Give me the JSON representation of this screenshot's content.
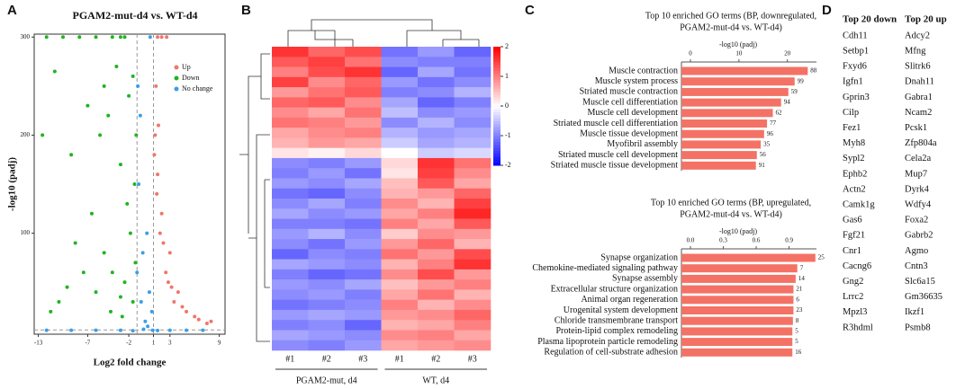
{
  "panels": [
    "A",
    "B",
    "C",
    "D"
  ],
  "chart_data": [
    {
      "type": "scatter",
      "title": "PGAM2-mut-d4  vs. WT-d4",
      "xlabel": "Log2 fold change",
      "ylabel": "-log10 (padj)",
      "xlim": [
        -13.5,
        9.7
      ],
      "ylim": [
        -3,
        303
      ],
      "xticks": [
        -13,
        -7,
        -2,
        1,
        3,
        9
      ],
      "yticks": [
        100,
        200,
        300
      ],
      "vlines": [
        -1,
        1
      ],
      "hlines": [
        1.3
      ],
      "legend": "upper right",
      "series": [
        {
          "name": "Up",
          "color": "#f0766b",
          "x": [
            1.5,
            2,
            2.6,
            1.2,
            1.5,
            2,
            3,
            4,
            5,
            6,
            8,
            2.5,
            1.8,
            3.5,
            1.3,
            1.1,
            1.4,
            2.2,
            4.5,
            6.5,
            7.5,
            1.6,
            2.8,
            3.2
          ],
          "values": [
            300,
            300,
            300,
            200,
            160,
            120,
            80,
            40,
            20,
            15,
            10,
            60,
            100,
            30,
            250,
            180,
            140,
            90,
            25,
            12,
            8,
            210,
            50,
            45
          ]
        },
        {
          "name": "Down",
          "color": "#1fb51f",
          "x": [
            -12,
            -10,
            -8,
            -6,
            -4,
            -3,
            -2.5,
            -12.5,
            -11,
            -9,
            -7,
            -5,
            -4.5,
            -3.5,
            -2,
            -1.5,
            -1.3,
            -6.5,
            -8.5,
            -5.5,
            -3,
            -2.2,
            -1.8,
            -4,
            -7.5,
            -9.5,
            -10.5,
            -11.5,
            -6,
            -5,
            -3,
            -2.5,
            -1.5,
            -1.2,
            -2.8,
            -4.2,
            -1.1
          ],
          "values": [
            300,
            300,
            300,
            300,
            300,
            300,
            300,
            200,
            265,
            180,
            230,
            250,
            220,
            270,
            240,
            260,
            150,
            120,
            90,
            200,
            170,
            130,
            100,
            60,
            60,
            45,
            30,
            20,
            40,
            80,
            35,
            50,
            30,
            70,
            15,
            20,
            200
          ]
        },
        {
          "name": "No change",
          "color": "#3a9ee8",
          "x": [
            -1,
            -0.5,
            0,
            0.5,
            0.8,
            -0.8,
            0.3,
            -0.2,
            0.9,
            -3,
            -6,
            -9,
            5,
            3,
            -0.6,
            0.6,
            -0.9,
            0.2,
            -12,
            -1.5,
            1.5,
            7,
            -0.3
          ],
          "values": [
            60,
            30,
            10,
            40,
            20,
            150,
            5,
            2,
            1,
            1,
            1,
            1,
            1,
            1,
            220,
            300,
            250,
            100,
            1,
            0.5,
            0.8,
            1,
            80
          ]
        }
      ]
    },
    {
      "type": "heatmap",
      "categories": [
        "#1",
        "#2",
        "#3",
        "#1",
        "#2",
        "#3"
      ],
      "groups": [
        "PGAM2-mut,  d4",
        "WT, d4"
      ],
      "zlim": [
        -2,
        2
      ],
      "cticks": [
        2,
        1,
        0,
        -1,
        -2
      ],
      "values": [
        [
          1.6,
          1.2,
          1.4,
          -1.1,
          -0.8,
          -1.2
        ],
        [
          1.3,
          1.5,
          1.1,
          -0.9,
          -1.0,
          -1.0
        ],
        [
          1.0,
          1.4,
          1.6,
          -1.2,
          -0.7,
          -1.1
        ],
        [
          1.5,
          0.9,
          1.2,
          -0.8,
          -1.1,
          -0.9
        ],
        [
          0.8,
          1.1,
          1.3,
          -1.0,
          -0.9,
          -0.6
        ],
        [
          1.2,
          1.3,
          0.9,
          -0.7,
          -1.2,
          -1.0
        ],
        [
          0.9,
          0.7,
          1.1,
          -0.5,
          -0.9,
          -0.8
        ],
        [
          1.1,
          1.0,
          0.8,
          -0.9,
          -0.6,
          -0.9
        ],
        [
          0.7,
          0.9,
          1.0,
          -0.6,
          -0.8,
          -0.7
        ],
        [
          0.6,
          0.8,
          0.7,
          -0.4,
          -0.7,
          -0.6
        ],
        [
          0.2,
          0.1,
          0.3,
          0.0,
          -0.4,
          -0.3
        ],
        [
          -0.9,
          -1.0,
          -0.8,
          0.3,
          1.6,
          1.1
        ],
        [
          -1.0,
          -0.8,
          -1.1,
          0.2,
          1.5,
          0.9
        ],
        [
          -0.8,
          -0.9,
          -0.7,
          0.5,
          1.3,
          0.7
        ],
        [
          -1.1,
          -1.2,
          -0.9,
          0.6,
          0.8,
          1.2
        ],
        [
          -0.9,
          -0.7,
          -1.0,
          0.9,
          0.6,
          1.5
        ],
        [
          -0.7,
          -0.9,
          -0.8,
          0.7,
          1.0,
          1.7
        ],
        [
          -1.0,
          -1.0,
          -1.1,
          1.0,
          0.7,
          1.3
        ],
        [
          -0.8,
          -0.6,
          -0.9,
          0.4,
          0.9,
          0.8
        ],
        [
          -0.9,
          -1.1,
          -0.8,
          0.8,
          1.2,
          0.6
        ],
        [
          -1.2,
          -0.9,
          -1.0,
          1.1,
          0.8,
          1.4
        ],
        [
          -0.7,
          -0.8,
          -0.9,
          0.6,
          1.0,
          1.6
        ],
        [
          -1.0,
          -1.2,
          -1.1,
          0.9,
          1.4,
          0.8
        ],
        [
          -0.8,
          -0.9,
          -0.7,
          0.5,
          0.8,
          1.0
        ],
        [
          -0.9,
          -0.8,
          -1.0,
          0.7,
          1.1,
          0.6
        ],
        [
          -1.1,
          -1.0,
          -0.9,
          1.0,
          0.6,
          0.9
        ],
        [
          -0.8,
          -0.7,
          -0.8,
          0.8,
          0.9,
          1.2
        ],
        [
          -1.0,
          -0.9,
          -1.2,
          0.6,
          0.7,
          1.0
        ],
        [
          -0.7,
          -0.8,
          -0.9,
          0.9,
          1.0,
          0.7
        ],
        [
          -0.9,
          -1.0,
          -0.8,
          0.7,
          0.8,
          0.9
        ]
      ]
    },
    {
      "type": "barh",
      "title": [
        "Top 10 enriched GO terms (BP, downregulated,",
        "PGAM2-mut-d4  vs. WT-d4)"
      ],
      "xlabel": "-log10 (padj)",
      "color": "#f37265",
      "xlim": [
        0,
        26
      ],
      "xticks": [
        0,
        10,
        20
      ],
      "categories": [
        "Muscle contraction",
        "Muscle system process",
        "Striated muscle contraction",
        "Muscle cell differentiation",
        "Muscle cell development",
        "Striated muscle cell differentiation",
        "Muscle tissue development",
        "Myofibril assembly",
        "Striated muscle cell development",
        "Striated muscle tissue development"
      ],
      "values": [
        24.2,
        21.5,
        20.2,
        18.7,
        17,
        15.8,
        15.2,
        14.5,
        13.7,
        13.5
      ],
      "counts": [
        88,
        99,
        59,
        94,
        62,
        77,
        96,
        35,
        56,
        91
      ]
    },
    {
      "type": "barh",
      "title": [
        "Top 10 enriched GO terms (BP, upregulated,",
        "PGAM2-mut-d4  vs. WT-d4)"
      ],
      "xlabel": "-log10 (padj)",
      "color": "#f37265",
      "xlim": [
        0,
        1.15
      ],
      "xticks": [
        {
          "value": 0,
          "label": "0.0"
        },
        {
          "value": 0.3,
          "label": "0.3"
        },
        {
          "value": 0.6,
          "label": "0.6"
        },
        {
          "value": 0.9,
          "label": "0.9"
        }
      ],
      "categories": [
        "Synapse organization",
        "Chemokine-mediated signaling pathway",
        "Synapse assembly",
        "Extracellular structure organization",
        "Animal organ regeneration",
        "Urogenital system development",
        "Chloride transmembrane transport",
        "Protein-lipid complex remodeling",
        "Plasma lipoprotein particle remodeling",
        "Regulation of cell-substrate adhesion"
      ],
      "values": [
        1.14,
        0.975,
        0.96,
        0.94,
        0.94,
        0.94,
        0.935,
        0.93,
        0.93,
        0.93
      ],
      "counts": [
        25,
        7,
        14,
        21,
        6,
        23,
        8,
        5,
        5,
        16
      ]
    }
  ],
  "table": {
    "columns": [
      "Top 20 down",
      "Top 20 up"
    ],
    "rows": [
      [
        "Cdh11",
        "Adcy2"
      ],
      [
        "Setbp1",
        "Mfng"
      ],
      [
        "Fxyd6",
        "Slitrk6"
      ],
      [
        "Igfn1",
        "Dnah11"
      ],
      [
        "Gprin3",
        "Gabra1"
      ],
      [
        "Cilp",
        "Ncam2"
      ],
      [
        "Fez1",
        "Pcsk1"
      ],
      [
        "Myh8",
        "Zfp804a"
      ],
      [
        "Sypl2",
        "Cela2a"
      ],
      [
        "Ephb2",
        "Mup7"
      ],
      [
        "Actn2",
        "Dyrk4"
      ],
      [
        "Camk1g",
        "Wdfy4"
      ],
      [
        "Gas6",
        "Foxa2"
      ],
      [
        "Fgf21",
        "Gabrb2"
      ],
      [
        "Cnr1",
        "Agmo"
      ],
      [
        "Cacng6",
        "Cntn3"
      ],
      [
        "Gng2",
        "Slc6a15"
      ],
      [
        "Lrrc2",
        "Gm36635"
      ],
      [
        "Mpzl3",
        "Ikzf1"
      ],
      [
        "R3hdml",
        "Psmb8"
      ]
    ]
  }
}
